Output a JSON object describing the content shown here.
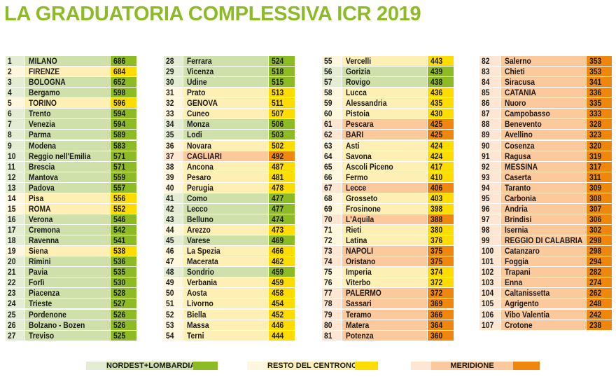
{
  "title": "LA GRADUATORIA COMPLESSIVA ICR 2019",
  "regions": {
    "N": {
      "label": "NORDEST+LOMBARDIA",
      "light": "#e4ecd3",
      "mid": "#d0e0ab",
      "dark": "#8dbb25"
    },
    "C": {
      "label": "RESTO DEL CENTRONORD",
      "light": "#fef7dd",
      "mid": "#feefb5",
      "dark": "#fedc00"
    },
    "M": {
      "label": "MERIDIONE",
      "light": "#fde6d2",
      "mid": "#fcc99d",
      "dark": "#ef870f"
    }
  },
  "columns": [
    [
      [
        "1",
        "MILANO",
        "686",
        "N"
      ],
      [
        "2",
        "FIRENZE",
        "684",
        "C"
      ],
      [
        "3",
        "BOLOGNA",
        "652",
        "N"
      ],
      [
        "4",
        "Bergamo",
        "598",
        "N"
      ],
      [
        "5",
        "TORINO",
        "596",
        "C"
      ],
      [
        "6",
        "Trento",
        "594",
        "N"
      ],
      [
        "7",
        "Venezia",
        "594",
        "N"
      ],
      [
        "8",
        "Parma",
        "589",
        "N"
      ],
      [
        "9",
        "Modena",
        "583",
        "N"
      ],
      [
        "10",
        "Reggio nell'Emilia",
        "571",
        "N"
      ],
      [
        "11",
        "Brescia",
        "571",
        "N"
      ],
      [
        "12",
        "Mantova",
        "559",
        "N"
      ],
      [
        "13",
        "Padova",
        "557",
        "N"
      ],
      [
        "14",
        "Pisa",
        "556",
        "C"
      ],
      [
        "15",
        "ROMA",
        "552",
        "C"
      ],
      [
        "16",
        "Verona",
        "546",
        "N"
      ],
      [
        "17",
        "Cremona",
        "542",
        "N"
      ],
      [
        "18",
        "Ravenna",
        "541",
        "N"
      ],
      [
        "19",
        "Siena",
        "538",
        "C"
      ],
      [
        "20",
        "Rimini",
        "536",
        "N"
      ],
      [
        "21",
        "Pavia",
        "535",
        "N"
      ],
      [
        "22",
        "Forlì",
        "530",
        "N"
      ],
      [
        "23",
        "Piacenza",
        "528",
        "N"
      ],
      [
        "24",
        "Trieste",
        "527",
        "N"
      ],
      [
        "25",
        "Pordenone",
        "526",
        "N"
      ],
      [
        "26",
        "Bolzano - Bozen",
        "526",
        "N"
      ],
      [
        "27",
        "Treviso",
        "525",
        "N"
      ]
    ],
    [
      [
        "28",
        "Ferrara",
        "524",
        "N"
      ],
      [
        "29",
        "Vicenza",
        "518",
        "N"
      ],
      [
        "30",
        "Udine",
        "515",
        "N"
      ],
      [
        "31",
        "Prato",
        "513",
        "C"
      ],
      [
        "32",
        "GENOVA",
        "511",
        "C"
      ],
      [
        "33",
        "Cuneo",
        "507",
        "C"
      ],
      [
        "34",
        "Monza",
        "506",
        "N"
      ],
      [
        "35",
        "Lodi",
        "503",
        "N"
      ],
      [
        "36",
        "Novara",
        "502",
        "C"
      ],
      [
        "37",
        "CAGLIARI",
        "492",
        "M"
      ],
      [
        "38",
        "Ancona",
        "487",
        "C"
      ],
      [
        "39",
        "Pesaro",
        "481",
        "C"
      ],
      [
        "40",
        "Perugia",
        "478",
        "C"
      ],
      [
        "41",
        "Como",
        "477",
        "N"
      ],
      [
        "42",
        "Lecco",
        "477",
        "N"
      ],
      [
        "43",
        "Belluno",
        "474",
        "N"
      ],
      [
        "44",
        "Arezzo",
        "473",
        "C"
      ],
      [
        "45",
        "Varese",
        "469",
        "N"
      ],
      [
        "46",
        "La Spezia",
        "466",
        "C"
      ],
      [
        "47",
        "Macerata",
        "462",
        "C"
      ],
      [
        "48",
        "Sondrio",
        "459",
        "N"
      ],
      [
        "49",
        "Verbania",
        "459",
        "C"
      ],
      [
        "50",
        "Aosta",
        "458",
        "C"
      ],
      [
        "51",
        "Livorno",
        "454",
        "C"
      ],
      [
        "52",
        "Biella",
        "452",
        "C"
      ],
      [
        "53",
        "Massa",
        "446",
        "C"
      ],
      [
        "54",
        "Terni",
        "444",
        "C"
      ]
    ],
    [
      [
        "55",
        "Vercelli",
        "443",
        "C"
      ],
      [
        "56",
        "Gorizia",
        "439",
        "N"
      ],
      [
        "57",
        "Rovigo",
        "438",
        "N"
      ],
      [
        "58",
        "Lucca",
        "436",
        "C"
      ],
      [
        "59",
        "Alessandria",
        "435",
        "C"
      ],
      [
        "60",
        "Pistoia",
        "430",
        "C"
      ],
      [
        "61",
        "Pescara",
        "425",
        "M"
      ],
      [
        "62",
        "BARI",
        "425",
        "M"
      ],
      [
        "63",
        "Asti",
        "424",
        "C"
      ],
      [
        "64",
        "Savona",
        "424",
        "C"
      ],
      [
        "65",
        "Ascoli Piceno",
        "417",
        "C"
      ],
      [
        "66",
        "Fermo",
        "410",
        "C"
      ],
      [
        "67",
        "Lecce",
        "406",
        "M"
      ],
      [
        "68",
        "Grosseto",
        "403",
        "C"
      ],
      [
        "69",
        "Frosinone",
        "398",
        "C"
      ],
      [
        "70",
        "L'Aquila",
        "388",
        "M"
      ],
      [
        "71",
        "Rieti",
        "380",
        "C"
      ],
      [
        "72",
        "Latina",
        "376",
        "C"
      ],
      [
        "73",
        "NAPOLI",
        "375",
        "M"
      ],
      [
        "74",
        "Oristano",
        "375",
        "M"
      ],
      [
        "75",
        "Imperia",
        "374",
        "C"
      ],
      [
        "76",
        "Viterbo",
        "372",
        "C"
      ],
      [
        "77",
        "PALERMO",
        "372",
        "M"
      ],
      [
        "78",
        "Sassari",
        "369",
        "M"
      ],
      [
        "79",
        "Teramo",
        "366",
        "M"
      ],
      [
        "80",
        "Matera",
        "364",
        "M"
      ],
      [
        "81",
        "Potenza",
        "360",
        "M"
      ]
    ],
    [
      [
        "82",
        "Salerno",
        "353",
        "M"
      ],
      [
        "83",
        "Chieti",
        "353",
        "M"
      ],
      [
        "84",
        "Siracusa",
        "341",
        "M"
      ],
      [
        "85",
        "CATANIA",
        "336",
        "M"
      ],
      [
        "86",
        "Nuoro",
        "335",
        "M"
      ],
      [
        "87",
        "Campobasso",
        "333",
        "M"
      ],
      [
        "88",
        "Benevento",
        "328",
        "M"
      ],
      [
        "89",
        "Avellino",
        "323",
        "M"
      ],
      [
        "90",
        "Cosenza",
        "320",
        "M"
      ],
      [
        "91",
        "Ragusa",
        "319",
        "M"
      ],
      [
        "92",
        "MESSINA",
        "317",
        "M"
      ],
      [
        "93",
        "Caserta",
        "311",
        "M"
      ],
      [
        "94",
        "Taranto",
        "309",
        "M"
      ],
      [
        "95",
        "Carbonia",
        "308",
        "M"
      ],
      [
        "96",
        "Andria",
        "307",
        "M"
      ],
      [
        "97",
        "Brindisi",
        "306",
        "M"
      ],
      [
        "98",
        "Isernia",
        "302",
        "M"
      ],
      [
        "99",
        "REGGIO DI CALABRIA",
        "298",
        "M"
      ],
      [
        "100",
        "Catanzaro",
        "298",
        "M"
      ],
      [
        "101",
        "Foggia",
        "294",
        "M"
      ],
      [
        "102",
        "Trapani",
        "282",
        "M"
      ],
      [
        "103",
        "Enna",
        "274",
        "M"
      ],
      [
        "104",
        "Caltanissetta",
        "262",
        "M"
      ],
      [
        "105",
        "Agrigento",
        "248",
        "M"
      ],
      [
        "106",
        "Vibo Valentia",
        "242",
        "M"
      ],
      [
        "107",
        "Crotone",
        "238",
        "M"
      ]
    ]
  ]
}
